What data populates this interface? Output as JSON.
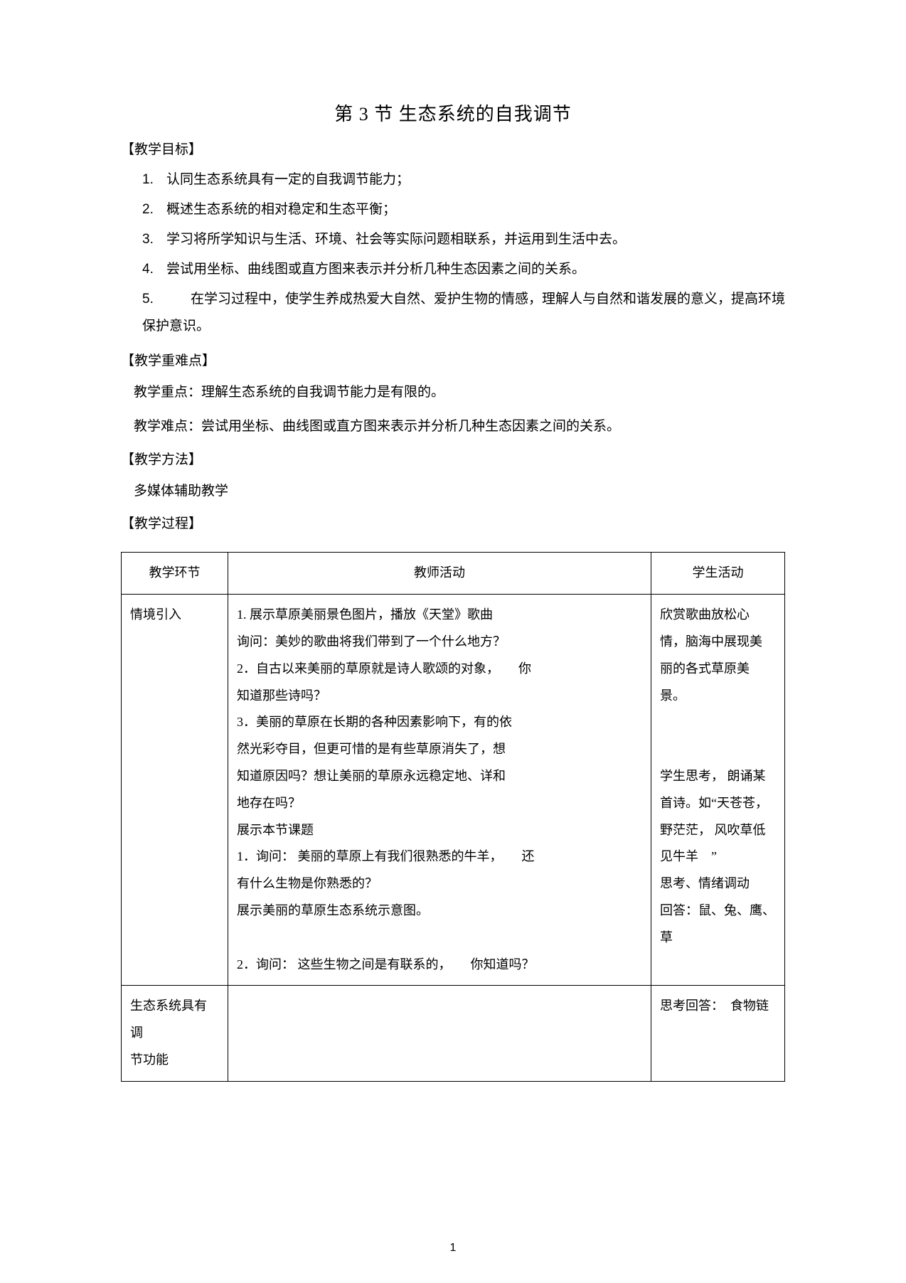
{
  "title": "第 3 节  生态系统的自我调节",
  "sections": {
    "objectives_header": "【教学目标】",
    "objectives": [
      "认同生态系统具有一定的自我调节能力；",
      "概述生态系统的相对稳定和生态平衡；",
      "学习将所学知识与生活、环境、社会等实际问题相联系，并运用到生活中去。",
      "尝试用坐标、曲线图或直方图来表示并分析几种生态因素之间的关系。",
      "在学习过程中，使学生养成热爱大自然、爱护生物的情感，理解人与自然和谐发展的意义，提高环境保护意识。"
    ],
    "keypoints_header": "【教学重难点】",
    "keypoint_1": "教学重点：理解生态系统的自我调节能力是有限的。",
    "keypoint_2": "教学难点：尝试用坐标、曲线图或直方图来表示并分析几种生态因素之间的关系。",
    "methods_header": "【教学方法】",
    "methods_body": "多媒体辅助教学",
    "process_header": "【教学过程】"
  },
  "table": {
    "headers": [
      "教学环节",
      "教师活动",
      "学生活动"
    ],
    "row1": {
      "col1": "情境引入",
      "col2_lines": [
        "1. 展示草原美丽景色图片，播放《天堂》歌曲",
        "询问：美妙的歌曲将我们带到了一个什么地方？",
        "2．自古以来美丽的草原就是诗人歌颂的对象，　　你",
        "知道那些诗吗？",
        "3．美丽的草原在长期的各种因素影响下，有的依",
        "然光彩夺目，但更可惜的是有些草原消失了，想",
        "知道原因吗？想让美丽的草原永远稳定地、详和",
        "地存在吗？",
        "展示本节课题",
        "1．询问： 美丽的草原上有我们很熟悉的牛羊，　　还",
        "有什么生物是你熟悉的？",
        "展示美丽的草原生态系统示意图。",
        "",
        "2．询问： 这些生物之间是有联系的，　　你知道吗？"
      ],
      "col3_lines": [
        "欣赏歌曲放松心",
        "情，脑海中展现美",
        "丽的各式草原美",
        "景。",
        "",
        "",
        "学生思考， 朗诵某",
        "首诗。如“天苍苍，",
        "野茫茫， 风吹草低",
        "见牛羊　”",
        "思考、情绪调动",
        "回答：鼠、兔、鹰、",
        "草",
        ""
      ]
    },
    "row2": {
      "col1_lines": [
        "生态系统具有调",
        "节功能"
      ],
      "col2": "",
      "col3": "思考回答：　食物链"
    }
  },
  "page_number": "1",
  "style": {
    "body_font": "SimSun",
    "body_color": "#000000",
    "background_color": "#ffffff",
    "border_color": "#000000",
    "title_fontsize": 26,
    "body_fontsize": 19,
    "table_fontsize": 18,
    "pagenum_fontsize": 16
  }
}
